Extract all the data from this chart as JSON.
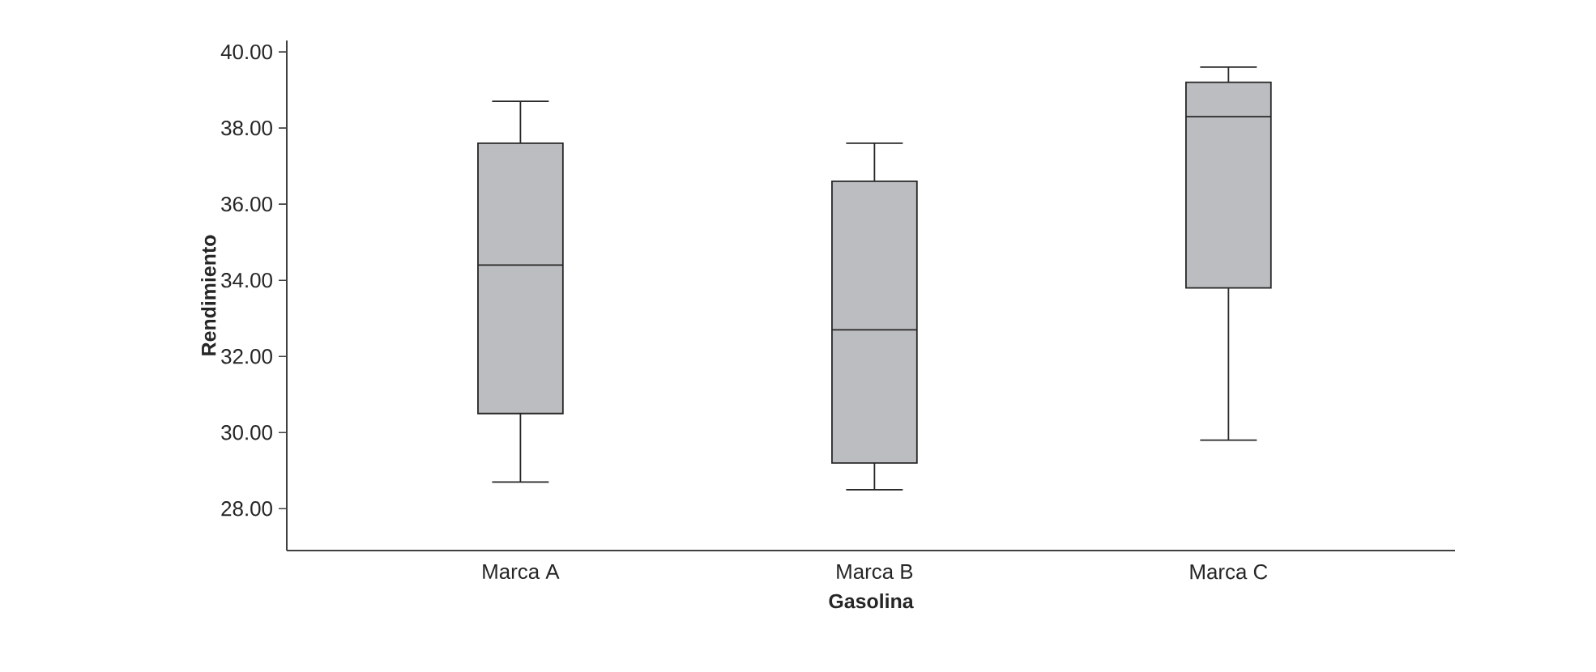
{
  "chart_data": {
    "type": "box",
    "xlabel": "Gasolina",
    "ylabel": "Rendimiento",
    "categories": [
      "Marca A",
      "Marca B",
      "Marca C"
    ],
    "series": [
      {
        "color": "#bcbdc0",
        "boxes": [
          {
            "low": 28.7,
            "q1": 30.5,
            "median": 34.4,
            "q3": 37.6,
            "high": 38.7
          },
          {
            "low": 28.5,
            "q1": 29.2,
            "median": 32.7,
            "q3": 36.6,
            "high": 37.6
          },
          {
            "low": 29.8,
            "q1": 33.8,
            "median": 38.3,
            "q3": 39.2,
            "high": 39.6
          }
        ]
      }
    ],
    "ylim": [
      26.9,
      40.3
    ],
    "yticks": [
      {
        "value": 28,
        "label": "28.00"
      },
      {
        "value": 30,
        "label": "30.00"
      },
      {
        "value": 32,
        "label": "32.00"
      },
      {
        "value": 34,
        "label": "34.00"
      },
      {
        "value": 36,
        "label": "36.00"
      },
      {
        "value": 38,
        "label": "38.00"
      },
      {
        "value": 40,
        "label": "40.00"
      }
    ]
  }
}
